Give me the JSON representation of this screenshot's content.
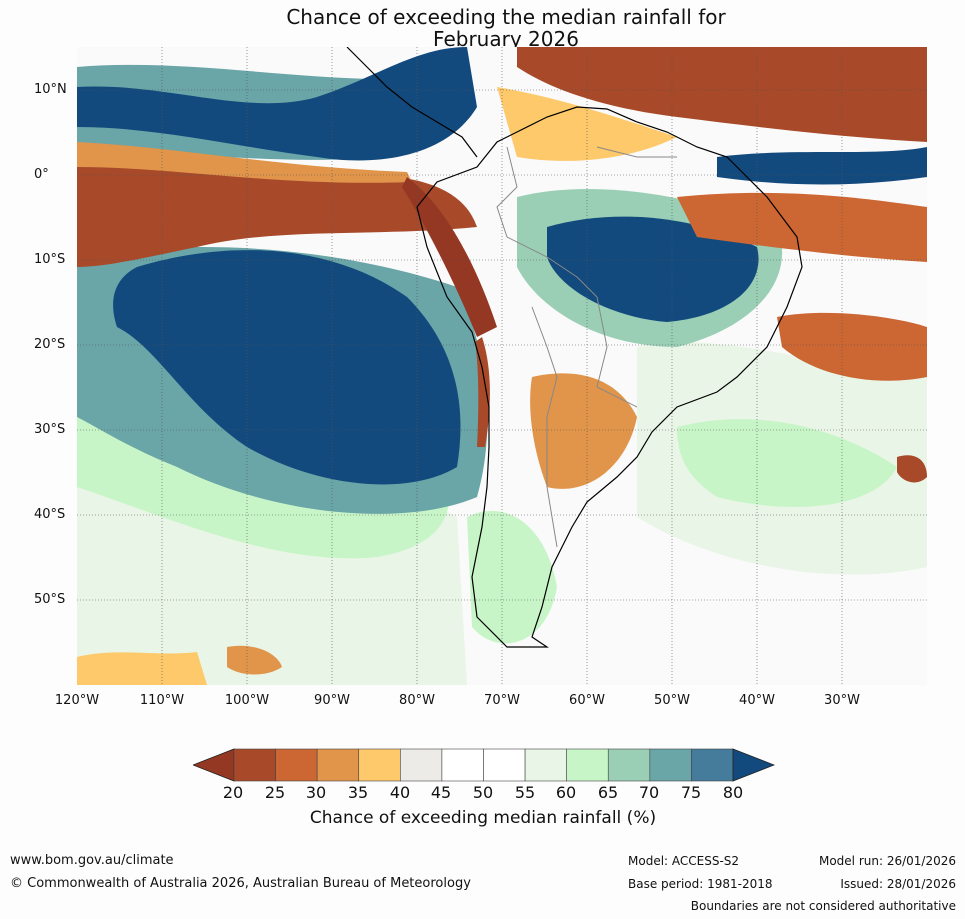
{
  "title": {
    "line1": "Chance of exceeding the median rainfall for",
    "line2": "February 2026"
  },
  "map": {
    "lat_labels": [
      "10°N",
      "0°",
      "10°S",
      "20°S",
      "30°S",
      "40°S",
      "50°S"
    ],
    "lon_labels": [
      "120°W",
      "110°W",
      "100°W",
      "90°W",
      "80°W",
      "70°W",
      "60°W",
      "50°W",
      "40°W",
      "30°W"
    ],
    "lat_range": [
      -60,
      15
    ],
    "lon_range": [
      -120,
      -20
    ]
  },
  "colorbar": {
    "ticks": [
      "20",
      "25",
      "30",
      "35",
      "40",
      "45",
      "50",
      "55",
      "60",
      "65",
      "70",
      "75",
      "80"
    ],
    "colors": [
      "#a84a2a",
      "#cc6633",
      "#e0954a",
      "#fdc96a",
      "#ecebe8",
      "#ffffff",
      "#ffffff",
      "#e9f5e6",
      "#c8f5c8",
      "#9acfb6",
      "#6aa5a8",
      "#457c9c"
    ],
    "low_extend_color": "#953823",
    "high_extend_color": "#134a7e",
    "label": "Chance of exceeding median rainfall (%)"
  },
  "footer": {
    "website": "www.bom.gov.au/climate",
    "copyright": "© Commonwealth of Australia 2026, Australian Bureau of Meteorology",
    "model": "Model: ACCESS-S2",
    "base_period": "Base period: 1981-2018",
    "model_run": "Model run: 26/01/2026",
    "issued": "Issued: 28/01/2026",
    "disclaimer": "Boundaries are not considered authoritative"
  }
}
